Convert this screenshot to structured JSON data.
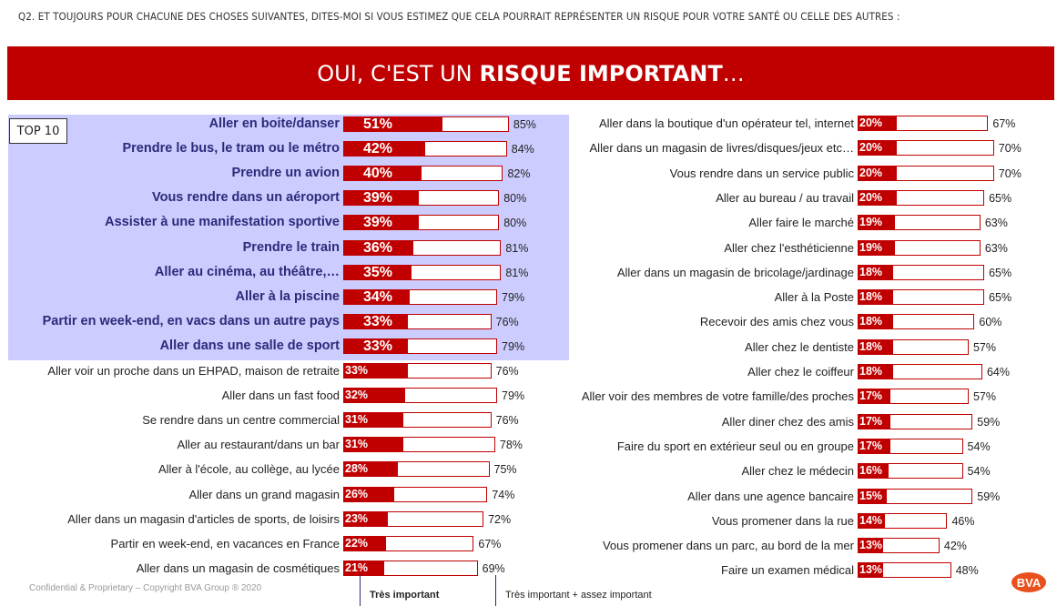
{
  "question": "Q2. ET TOUJOURS POUR CHACUNE DES CHOSES SUIVANTES, DITES-MOI SI VOUS ESTIMEZ QUE CELA POURRAIT REPRÉSENTER UN RISQUE POUR VOTRE SANTÉ OU CELLE DES AUTRES :",
  "banner": {
    "part1": "OUI, C'EST UN",
    "part2": "RISQUE IMPORTANT",
    "part3": "…"
  },
  "top10_label": "TOP 10",
  "footer": "Confidential & Proprietary – Copyright BVA Group ® 2020",
  "legend": {
    "tres_important": "Très important",
    "tres_assez": "Très important + assez important"
  },
  "logo_text": "BVA",
  "colors": {
    "red": "#c00000",
    "highlight": "#ccccff",
    "top_text": "#2b2b7a"
  },
  "chart_data": {
    "type": "bar",
    "series_names": [
      "Très important",
      "Très important + assez important"
    ],
    "left": [
      {
        "label": "Aller en boite/danser",
        "value": 51,
        "total": 85,
        "top": true
      },
      {
        "label": "Prendre le bus, le tram ou le métro",
        "value": 42,
        "total": 84,
        "top": true
      },
      {
        "label": "Prendre un avion",
        "value": 40,
        "total": 82,
        "top": true
      },
      {
        "label": "Vous rendre dans un aéroport",
        "value": 39,
        "total": 80,
        "top": true
      },
      {
        "label": "Assister à une manifestation sportive",
        "value": 39,
        "total": 80,
        "top": true
      },
      {
        "label": "Prendre le train",
        "value": 36,
        "total": 81,
        "top": true
      },
      {
        "label": "Aller au cinéma, au théâtre,…",
        "value": 35,
        "total": 81,
        "top": true
      },
      {
        "label": "Aller à la piscine",
        "value": 34,
        "total": 79,
        "top": true
      },
      {
        "label": "Partir en week-end, en vacs dans un autre pays",
        "value": 33,
        "total": 76,
        "top": true
      },
      {
        "label": "Aller dans une salle de sport",
        "value": 33,
        "total": 79,
        "top": true
      },
      {
        "label": "Aller voir un proche dans un EHPAD, maison de retraite",
        "value": 33,
        "total": 76
      },
      {
        "label": "Aller dans un fast food",
        "value": 32,
        "total": 79
      },
      {
        "label": "Se rendre dans un centre commercial",
        "value": 31,
        "total": 76
      },
      {
        "label": "Aller au restaurant/dans un bar",
        "value": 31,
        "total": 78
      },
      {
        "label": "Aller à l'école, au collège, au lycée",
        "value": 28,
        "total": 75
      },
      {
        "label": "Aller dans un grand magasin",
        "value": 26,
        "total": 74
      },
      {
        "label": "Aller dans un magasin d'articles de sports, de loisirs",
        "value": 23,
        "total": 72
      },
      {
        "label": "Partir en week-end, en vacances en France",
        "value": 22,
        "total": 67
      },
      {
        "label": "Aller dans un magasin de cosmétiques",
        "value": 21,
        "total": 69
      }
    ],
    "right": [
      {
        "label": "Aller dans la boutique d'un opérateur tel, internet",
        "value": 20,
        "total": 67
      },
      {
        "label": "Aller dans un magasin de livres/disques/jeux etc…",
        "value": 20,
        "total": 70
      },
      {
        "label": "Vous rendre dans un service public",
        "value": 20,
        "total": 70
      },
      {
        "label": "Aller au bureau / au travail",
        "value": 20,
        "total": 65
      },
      {
        "label": "Aller faire le marché",
        "value": 19,
        "total": 63
      },
      {
        "label": "Aller chez l'esthéticienne",
        "value": 19,
        "total": 63
      },
      {
        "label": "Aller dans un magasin de bricolage/jardinage",
        "value": 18,
        "total": 65
      },
      {
        "label": "Aller à la Poste",
        "value": 18,
        "total": 65
      },
      {
        "label": "Recevoir des amis chez vous",
        "value": 18,
        "total": 60
      },
      {
        "label": "Aller chez le dentiste",
        "value": 18,
        "total": 57
      },
      {
        "label": "Aller chez le coiffeur",
        "value": 18,
        "total": 64
      },
      {
        "label": "Aller voir des membres de votre famille/des proches",
        "value": 17,
        "total": 57
      },
      {
        "label": "Aller diner chez des amis",
        "value": 17,
        "total": 59
      },
      {
        "label": "Faire du sport en extérieur seul ou en groupe",
        "value": 17,
        "total": 54
      },
      {
        "label": "Aller chez le médecin",
        "value": 16,
        "total": 54
      },
      {
        "label": "Aller dans une agence bancaire",
        "value": 15,
        "total": 59
      },
      {
        "label": "Vous promener dans la rue",
        "value": 14,
        "total": 46
      },
      {
        "label": "Vous promener dans un parc, au bord de la mer",
        "value": 13,
        "total": 42
      },
      {
        "label": "Faire un examen médical",
        "value": 13,
        "total": 48
      }
    ]
  }
}
